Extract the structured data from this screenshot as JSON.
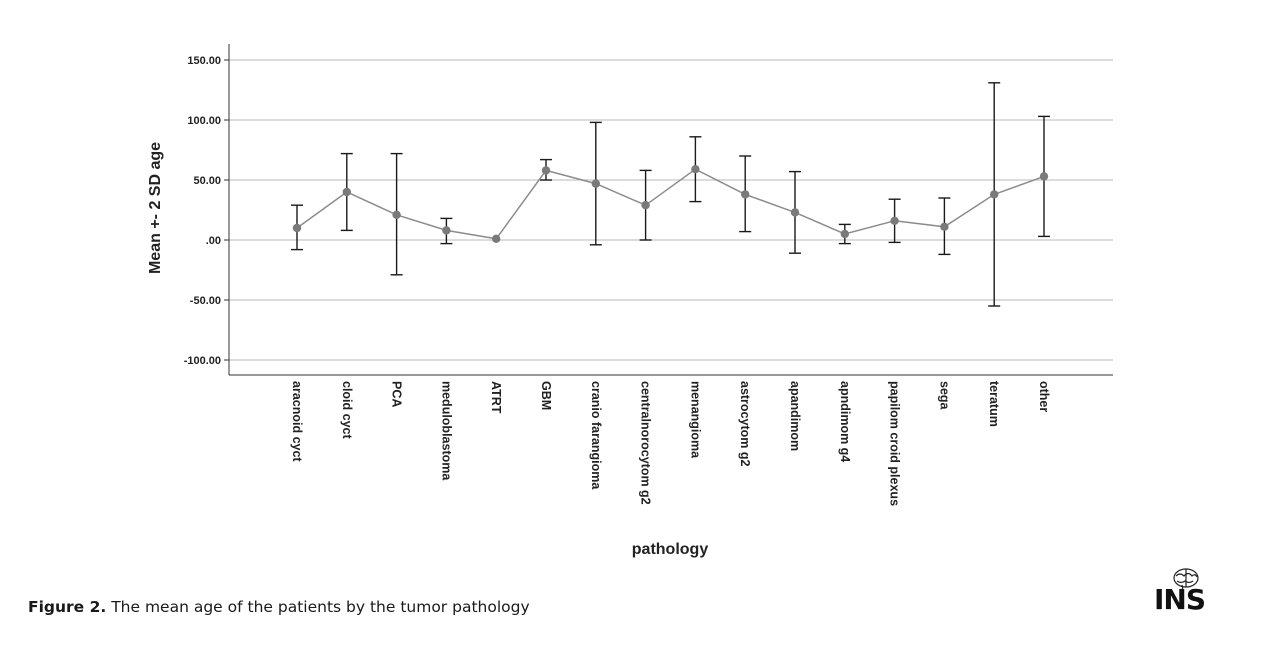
{
  "chart_data": {
    "type": "line",
    "title": "",
    "xlabel": "pathology",
    "ylabel": "Mean +- 2 SD age",
    "ylim": [
      -115,
      165
    ],
    "yticks": [
      150,
      100,
      50,
      0,
      -50,
      -100
    ],
    "ytick_labels": [
      "150.00",
      "100.00",
      "50.00",
      ".00",
      "-50.00",
      "-100.00"
    ],
    "grid": "horizontal",
    "legend": "none",
    "categories": [
      "aracnoid cyct",
      "cloid cyct",
      "PCA",
      "meduloblastoma",
      "ATRT",
      "GBM",
      "cranio farangioma",
      "centralnorocytom g2",
      "menangioma",
      "astrocytom g2",
      "apandimom",
      "apndimom g4",
      "papilom croid plexus",
      "sega",
      "teratum",
      "other"
    ],
    "series": [
      {
        "mean": [
          10,
          40,
          21,
          8,
          1,
          58,
          47,
          29,
          59,
          38,
          23,
          5,
          16,
          11,
          38,
          53
        ],
        "lower": [
          -8,
          8,
          -29,
          -3,
          1,
          50,
          -4,
          0,
          32,
          7,
          -11,
          -3,
          -2,
          -12,
          -55,
          3
        ],
        "upper": [
          29,
          72,
          72,
          18,
          1,
          67,
          98,
          58,
          86,
          70,
          57,
          13,
          34,
          35,
          131,
          103
        ]
      }
    ],
    "colors": {
      "line": "#8c8c8c",
      "marker": "#7a7a7a",
      "errorbar": "#1a1a1a",
      "grid": "#c8c8c8",
      "axis": "#333333"
    }
  },
  "caption": {
    "label": "Figure 2.",
    "text": " The mean age of the patients by the tumor pathology"
  },
  "logo": {
    "text": "INS",
    "icon": "brain-icon"
  }
}
